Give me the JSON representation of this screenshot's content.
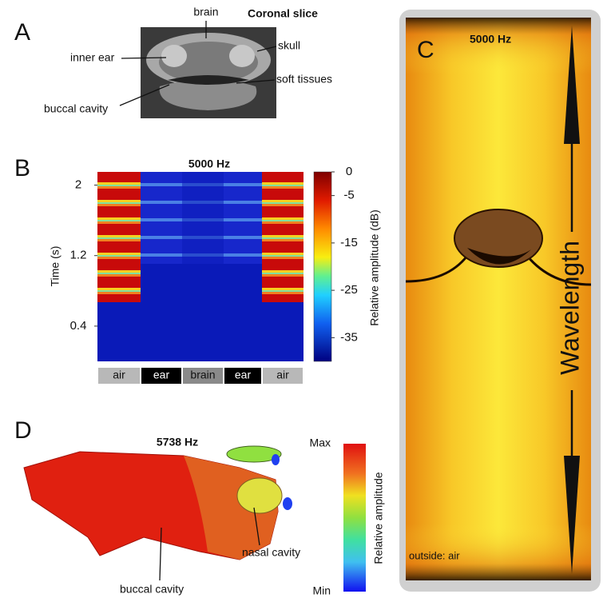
{
  "panel_labels": [
    "A",
    "B",
    "C",
    "D"
  ],
  "panel_a": {
    "title": "Coronal slice",
    "labels": [
      "brain",
      "skull",
      "inner ear",
      "soft tissues",
      "buccal cavity"
    ]
  },
  "panel_b": {
    "title": "5000 Hz",
    "y_label": "Time (s)",
    "ylim": [
      0,
      2.15
    ],
    "yticks": [
      0.4,
      1.2,
      2
    ],
    "colorbar_label": "Relative amplitude  (dB)",
    "clim": [
      -40,
      0
    ],
    "colorbar_ticks": [
      0,
      -5,
      -15,
      -25,
      -35
    ],
    "columns": [
      "air",
      "ear",
      "brain",
      "ear",
      "air"
    ]
  },
  "panel_c": {
    "title": "5000 Hz",
    "arrow_label": "Wavelength",
    "footer": "outside: air"
  },
  "panel_d": {
    "title": "5738 Hz",
    "colorbar_label": "Relative amplitude",
    "colorbar_max": "Max",
    "colorbar_min": "Min",
    "labels": [
      "nasal cavity",
      "buccal cavity"
    ]
  }
}
